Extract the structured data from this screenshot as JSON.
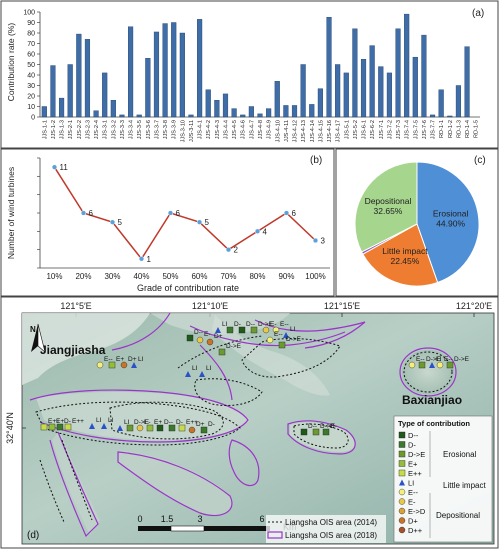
{
  "chart_data": [
    {
      "panel": "(a)",
      "type": "bar",
      "ylabel": "Contribution rate (%)",
      "ylim": [
        0,
        100
      ],
      "yticks": [
        0,
        10,
        20,
        30,
        40,
        50,
        60,
        70,
        80,
        90,
        100
      ],
      "grid": false,
      "bar_color": "#3f6da8",
      "categories": [
        "JJS-1-1",
        "JJS-1-2",
        "JJS-1-3",
        "JJS-2-1",
        "JJS-2-2",
        "JJS-2-3",
        "JJS-2-4",
        "JJS-3-1",
        "JJS-3-2",
        "JJS-3-3",
        "JJS-3-4",
        "JJS-3-5",
        "JJS-3-6",
        "JJS-3-7",
        "JJS-3-8",
        "JJS-3-9",
        "JJS-3-10",
        "JJS-3-11",
        "JJS-4-1",
        "JJS-4-2",
        "JJS-4-3",
        "JJS-4-4",
        "JJS-4-5",
        "JJS-4-6",
        "JJS-4-7",
        "JJS-4-8",
        "JJS-4-9",
        "JJS-4-10",
        "JJS-4-11",
        "JJS-4-12",
        "JJS-4-13",
        "JJS-4-14",
        "JJS-4-15",
        "JJS-4-16",
        "JJS-4-17",
        "JJS-5-1",
        "JJS-5-2",
        "JJS-6-1",
        "JJS-6-2",
        "JJS-7-1",
        "JJS-7-2",
        "JJS-7-3",
        "JJS-7-4",
        "JJS-7-5",
        "JJS-7-6",
        "JJS-7-7",
        "RD-1-1",
        "RD-1-2",
        "RD-1-3",
        "RD-1-4",
        "RD-1-5"
      ],
      "values": [
        10,
        49,
        18,
        50,
        79,
        74,
        6,
        42,
        16,
        2,
        86,
        2,
        56,
        81,
        89,
        90,
        80,
        2,
        93,
        26,
        16,
        22,
        8,
        2,
        10,
        3,
        8,
        34,
        11,
        11,
        50,
        12,
        27,
        95,
        50,
        42,
        84,
        55,
        68,
        48,
        42,
        84,
        98,
        57,
        78,
        2,
        26,
        1,
        30,
        67,
        0
      ]
    },
    {
      "panel": "(b)",
      "type": "line",
      "xlabel": "Grade of contribution rate",
      "ylabel": "Number of wind turbines",
      "categories": [
        "10%",
        "20%",
        "30%",
        "40%",
        "50%",
        "60%",
        "70%",
        "80%",
        "90%",
        "100%"
      ],
      "values": [
        11,
        6,
        5,
        1,
        6,
        5,
        2,
        4,
        6,
        3
      ],
      "data_labels": [
        "11",
        "6",
        "5",
        "1",
        "6",
        "5",
        "2",
        "4",
        "6",
        "3"
      ],
      "line_color": "#c0392b",
      "marker_color": "#5aa0dd",
      "ylim": [
        0,
        12
      ]
    },
    {
      "panel": "(c)",
      "type": "pie",
      "slices": [
        {
          "label": "Erosional",
          "value": 44.9,
          "text": "Erosional",
          "pct": "44.90%",
          "color": "#4e8fd6"
        },
        {
          "label": "Little impact",
          "value": 22.45,
          "text": "Little impact",
          "pct": "22.45%",
          "color": "#ee7d31"
        },
        {
          "label": "",
          "value": 0.65,
          "text": "",
          "pct": "",
          "color": "#9b59b6"
        },
        {
          "label": "Depositional",
          "value": 32.65,
          "text": "Depositional",
          "pct": "32.65%",
          "color": "#a6d58d"
        }
      ]
    }
  ],
  "map": {
    "panel": "(d)",
    "lon_labels": [
      "121°5′E",
      "121°10′E",
      "121°15′E",
      "121°20′E"
    ],
    "lat_label": "32°40′N",
    "places": [
      "Jiangjiasha",
      "Baxianjiao"
    ],
    "north": "N",
    "scale_values": [
      "0",
      "1.5",
      "3",
      "6"
    ],
    "scale_unit": "Km",
    "area_2014": "Liangsha OIS area (2014)",
    "area_2018": "Liangsha OIS area (2018)",
    "legend_title": "Type of contribution",
    "legend_items": [
      {
        "code": "D--",
        "color": "#1f5a1a",
        "shape": "square"
      },
      {
        "code": "D-",
        "color": "#3b7a2a",
        "shape": "square"
      },
      {
        "code": "D->E",
        "color": "#6b9a2e",
        "shape": "square"
      },
      {
        "code": "E+",
        "color": "#94bd3a",
        "shape": "square"
      },
      {
        "code": "E++",
        "color": "#c6dc4a",
        "shape": "square"
      },
      {
        "code": "LI",
        "color": "#2a52c8",
        "shape": "triangle"
      },
      {
        "code": "E--",
        "color": "#f4ee7a",
        "shape": "circle"
      },
      {
        "code": "E-",
        "color": "#e8c84a",
        "shape": "circle"
      },
      {
        "code": "E->D",
        "color": "#dba23a",
        "shape": "circle"
      },
      {
        "code": "D+",
        "color": "#c8742a",
        "shape": "circle"
      },
      {
        "code": "D++",
        "color": "#a8502a",
        "shape": "circle"
      }
    ],
    "legend_groups": [
      "Erosional",
      "Little impact",
      "Depositional"
    ],
    "marker_labels": [
      "E++",
      "E+",
      "D-",
      "E++",
      "LI",
      "LI",
      "LI",
      "E--",
      "E+",
      "D+",
      "LI",
      "D->E",
      "E-",
      "E+",
      "D--",
      "D-",
      "E++",
      "D+",
      "D-",
      "LI",
      "D-",
      "D--",
      "D->E",
      "E-",
      "E--",
      "LI",
      "D--",
      "E-",
      "D+",
      "D->E",
      "LI",
      "LI",
      "E--",
      "D->E",
      "E--",
      "D->E",
      "LI",
      "E--",
      "D->E",
      "D--",
      "D->E",
      "D-"
    ]
  }
}
